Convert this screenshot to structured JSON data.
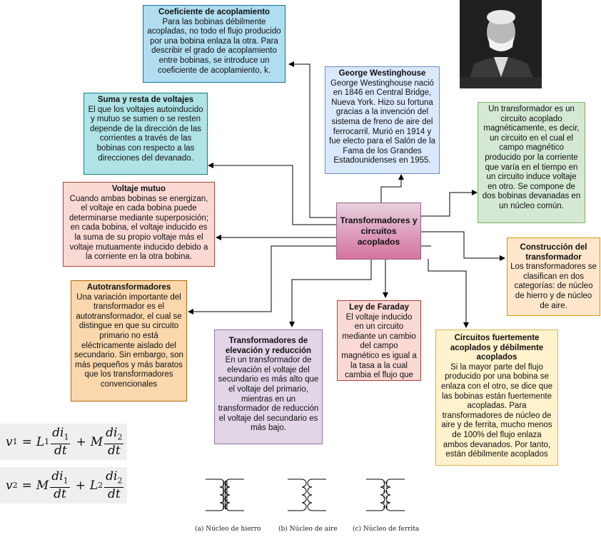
{
  "center": {
    "title": "Transformadores y circuitos acoplados"
  },
  "nodes": {
    "coeficiente": {
      "title": "Coeficiente de acoplamiento",
      "body": "Para las bobinas débilmente acopladas, no todo el flujo producido por una bobina enlaza la otra. Para describir el grado de acoplamiento entre bobinas, se introduce un coeficiente de acoplamiento, k."
    },
    "westinghouse": {
      "title": "George Westinghouse",
      "body": "George Westinghouse nació en 1846 en Central Bridge, Nueva York. Hizo su fortuna gracias a la invención del sistema de freno de aire del ferrocarril. Murió en 1914 y fue electo para el Salón de la Fama de los Grandes Estadounidenses en 1955."
    },
    "suma": {
      "title": "Suma y resta de voltajes",
      "body": "El que los voltajes autoinducido y mutuo se sumen o se resten depende de la dirección de las corrientes a través de las bobinas con respecto a las direcciones del devanado."
    },
    "definicion": {
      "body": "Un transformador es un circuito acoplado magnéticamente, es decir, un circuito en el cual el campo magnético producido por la corriente que varía en el tiempo en un circuito induce voltaje en otro. Se compone de dos bobinas devanadas en un núcleo común."
    },
    "mutuo": {
      "title": "Voltaje mutuo",
      "body": "Cuando ambas bobinas se energizan, el voltaje en cada bobina puede determinarse mediante superposición; en cada bobina, el voltaje inducido es la suma de su propio voltaje más el voltaje mutuamente inducido debido a la corriente en la otra bobina."
    },
    "construccion": {
      "title": "Construcción del transformador",
      "body": "Los transformadores se clasifican en dos categorías: de núcleo de hierro y de núcleo de aire."
    },
    "auto": {
      "title": "Autotransformadores",
      "body": "Una variación importante del transformador es el autotransformador, el cual se distingue en que su circuito primario no está eléctricamente aislado del secundario. Sin embargo, son más pequeños y más baratos que los transformadores convencionales"
    },
    "faraday": {
      "title": "Ley de Faraday",
      "body": "El voltaje inducido en un circuito mediante un cambio del campo magnético es igual a la tasa a la cual cambia el flujo que enlaza al circuito."
    },
    "elevacion": {
      "title": "Transformadores de elevación y reducción",
      "body": "En un transformador de elevación el voltaje del secundario es más alto que el voltaje del primario, mientras en un transformador de reducción el voltaje del secundario es más bajo."
    },
    "fuertes": {
      "title": "Circuitos fuertemente acoplados y débilmente acoplados",
      "body": "Si la mayor parte del flujo producido por una bobina se enlaza con el otro, se dice que las bobinas están fuertemente acopladas. Para transformadores de núcleo de aire y de ferrita, mucho menos de 100% del flujo enlaza ambos devanados. Por tanto, están débilmente acoplados"
    }
  },
  "equations": {
    "v1": {
      "lhs": "v",
      "lhs_sub": "1",
      "t1_coef": "L",
      "t1_coef_sub": "1",
      "t1_num": "di",
      "t1_num_sub": "1",
      "t1_den": "dt",
      "t2_coef": "M",
      "t2_num": "di",
      "t2_num_sub": "2",
      "t2_den": "dt"
    },
    "v2": {
      "lhs": "v",
      "lhs_sub": "2",
      "t1_coef": "M",
      "t1_num": "di",
      "t1_num_sub": "1",
      "t1_den": "dt",
      "t2_coef": "L",
      "t2_coef_sub": "2",
      "t2_num": "di",
      "t2_num_sub": "2",
      "t2_den": "dt"
    },
    "eq_sign": "=",
    "plus_sign": "+"
  },
  "captions": {
    "a": "(a) Núcleo de hierro",
    "b": "(b) Núcleo de aire",
    "c": "(c) Núcleo de ferrita"
  },
  "portrait_icon": "portrait-photo",
  "colors": {
    "connector": "#000000",
    "center_fill": "#d5739d"
  }
}
